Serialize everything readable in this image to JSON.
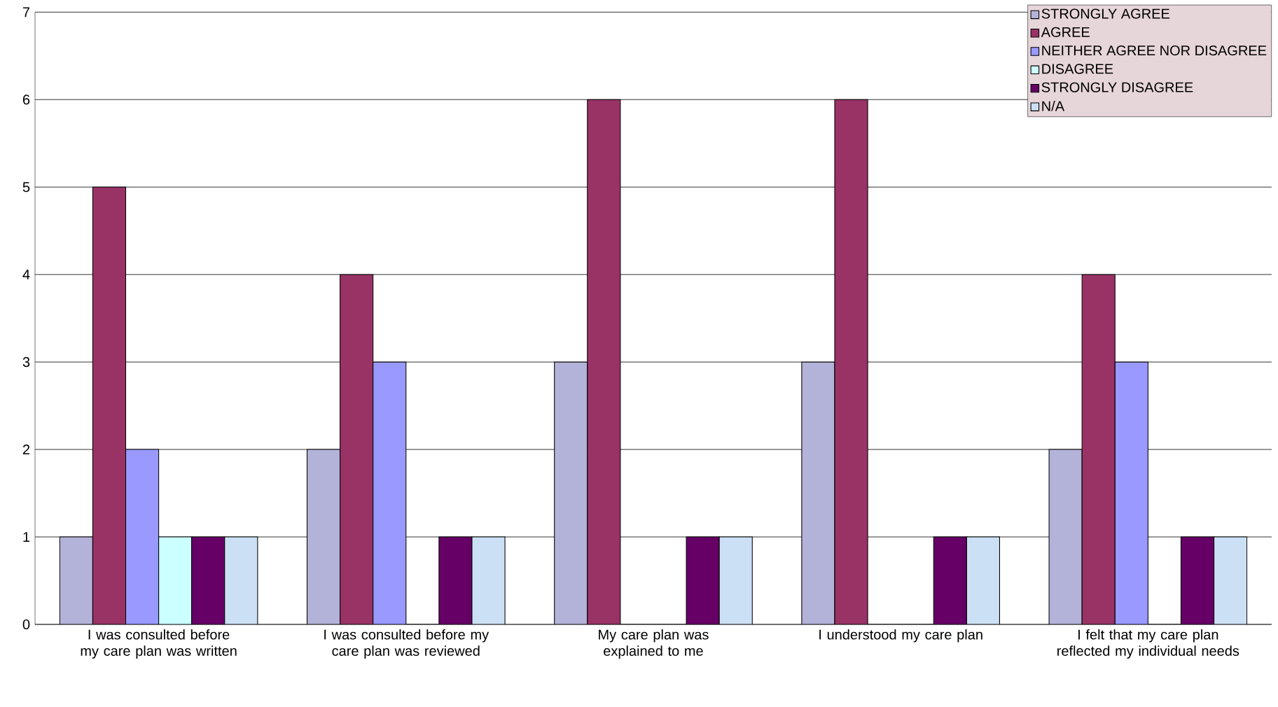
{
  "chart_data": {
    "type": "bar",
    "categories": [
      "I was consulted before my care plan was written",
      "I was consulted before my care plan was reviewed",
      "My care plan was explained to me",
      "I understood my care plan",
      "I felt that my care plan reflected my individual needs"
    ],
    "series": [
      {
        "name": "STRONGLY AGREE",
        "color": "#b3b3d9",
        "values": [
          1,
          2,
          3,
          3,
          2
        ]
      },
      {
        "name": "AGREE",
        "color": "#993366",
        "values": [
          5,
          4,
          6,
          6,
          4
        ]
      },
      {
        "name": "NEITHER AGREE NOR DISAGREE",
        "color": "#9999ff",
        "values": [
          2,
          3,
          0,
          0,
          3
        ]
      },
      {
        "name": "DISAGREE",
        "color": "#ccffff",
        "values": [
          1,
          0,
          0,
          0,
          0
        ]
      },
      {
        "name": "STRONGLY DISAGREE",
        "color": "#660066",
        "values": [
          1,
          1,
          1,
          1,
          1
        ]
      },
      {
        "name": "N/A",
        "color": "#cce0f5",
        "values": [
          1,
          1,
          1,
          1,
          1
        ]
      }
    ],
    "ylim": [
      0,
      7
    ],
    "yticks": [
      0,
      1,
      2,
      3,
      4,
      5,
      6,
      7
    ],
    "grid": "y",
    "legend": "top right"
  }
}
